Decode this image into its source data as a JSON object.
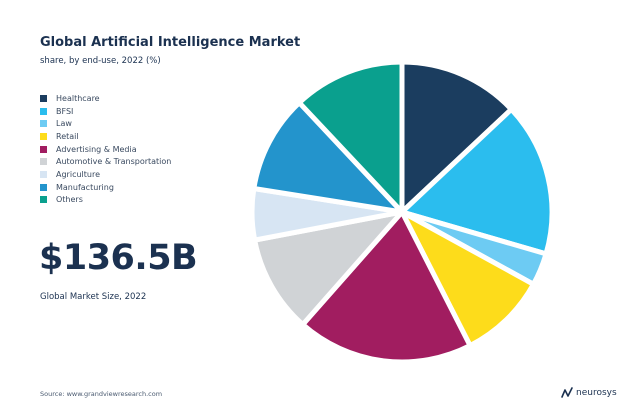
{
  "chart_data": {
    "type": "pie",
    "title": "Global Artificial Intelligence Market",
    "subtitle": "share, by end-use, 2022 (%)",
    "unit": "%",
    "legend_position": "left",
    "slices": [
      {
        "label": "Healthcare",
        "value": 13.0,
        "color": "#1b3d5f"
      },
      {
        "label": "BFSI",
        "value": 16.5,
        "color": "#2bbdee"
      },
      {
        "label": "Law",
        "value": 3.5,
        "color": "#6dcbf3"
      },
      {
        "label": "Retail",
        "value": 9.5,
        "color": "#fddc1b"
      },
      {
        "label": "Advertising & Media",
        "value": 19.0,
        "color": "#a11d60"
      },
      {
        "label": "Automotive & Transportation",
        "value": 10.5,
        "color": "#d0d3d6"
      },
      {
        "label": "Agriculture",
        "value": 5.5,
        "color": "#d7e5f3"
      },
      {
        "label": "Manufacturing",
        "value": 10.5,
        "color": "#2394cc"
      },
      {
        "label": "Others",
        "value": 12.0,
        "color": "#0aa08e"
      }
    ]
  },
  "market": {
    "value": "$136.5B",
    "caption": "Global Market Size, 2022"
  },
  "footer": {
    "source": "Source: www.grandviewresearch.com",
    "brand": "neurosys",
    "brand_icon": "neurosys-logo-icon"
  }
}
